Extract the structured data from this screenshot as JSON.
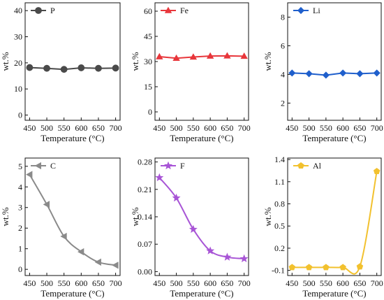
{
  "chart_data": [
    {
      "type": "line",
      "xlabel": "Temperature (°C)",
      "ylabel": "wt.%",
      "x": [
        450,
        500,
        550,
        600,
        650,
        700
      ],
      "xticks": [
        "450",
        "500",
        "550",
        "600",
        "650",
        "700"
      ],
      "xlim": [
        437,
        713
      ],
      "ylim": [
        -2,
        43
      ],
      "yticks": [
        0,
        10,
        20,
        30,
        40
      ],
      "ytick_labels": [
        "0",
        "10",
        "20",
        "30",
        "40"
      ],
      "series": [
        {
          "name": "P",
          "color": "#4a4a4a",
          "marker": "circle",
          "curve": "linear",
          "values": [
            18.2,
            17.9,
            17.5,
            18.1,
            17.9,
            18.0
          ]
        }
      ]
    },
    {
      "type": "line",
      "xlabel": "Temperature (°C)",
      "ylabel": "wt.%",
      "x": [
        450,
        500,
        550,
        600,
        650,
        700
      ],
      "xticks": [
        "450",
        "500",
        "550",
        "600",
        "650",
        "700"
      ],
      "xlim": [
        437,
        713
      ],
      "ylim": [
        -5,
        65
      ],
      "yticks": [
        0,
        15,
        30,
        45,
        60
      ],
      "ytick_labels": [
        "0",
        "15",
        "30",
        "45",
        "60"
      ],
      "series": [
        {
          "name": "Fe",
          "color": "#e8363b",
          "marker": "triangle-up",
          "curve": "linear",
          "values": [
            32.9,
            32.0,
            32.7,
            33.3,
            33.4,
            33.2
          ]
        }
      ]
    },
    {
      "type": "line",
      "xlabel": "Temperature (°C)",
      "ylabel": "wt.%",
      "x": [
        450,
        500,
        550,
        600,
        650,
        700
      ],
      "xticks": [
        "450",
        "500",
        "550",
        "600",
        "650",
        "700"
      ],
      "xlim": [
        437,
        713
      ],
      "ylim": [
        0.8,
        9
      ],
      "yticks": [
        2,
        4,
        6,
        8
      ],
      "ytick_labels": [
        "2",
        "4",
        "6",
        "8"
      ],
      "series": [
        {
          "name": "Li",
          "color": "#1f5fcc",
          "marker": "diamond",
          "curve": "linear",
          "values": [
            4.1,
            4.05,
            3.95,
            4.1,
            4.05,
            4.1
          ]
        }
      ]
    },
    {
      "type": "line",
      "xlabel": "Temperature (°C)",
      "ylabel": "wt.%",
      "x": [
        450,
        500,
        550,
        600,
        650,
        700
      ],
      "xticks": [
        "450",
        "500",
        "550",
        "600",
        "650",
        "700"
      ],
      "xlim": [
        437,
        713
      ],
      "ylim": [
        -0.3,
        5.4
      ],
      "yticks": [
        0,
        1,
        2,
        3,
        4,
        5
      ],
      "ytick_labels": [
        "0",
        "1",
        "2",
        "3",
        "4",
        "5"
      ],
      "series": [
        {
          "name": "C",
          "color": "#8a8a8a",
          "marker": "triangle-left",
          "curve": "smooth",
          "values": [
            4.6,
            3.15,
            1.6,
            0.85,
            0.35,
            0.2
          ]
        }
      ]
    },
    {
      "type": "line",
      "xlabel": "Temperature (°C)",
      "ylabel": "wt.%",
      "x": [
        450,
        500,
        550,
        600,
        650,
        700
      ],
      "xticks": [
        "450",
        "500",
        "550",
        "600",
        "650",
        "700"
      ],
      "xlim": [
        437,
        713
      ],
      "ylim": [
        -0.01,
        0.29
      ],
      "yticks": [
        0,
        0.07,
        0.14,
        0.21,
        0.28
      ],
      "ytick_labels": [
        "0.00",
        "0.07",
        "0.14",
        "0.21",
        "0.28"
      ],
      "series": [
        {
          "name": "F",
          "color": "#a855d6",
          "marker": "star",
          "curve": "smooth",
          "values": [
            0.24,
            0.188,
            0.108,
            0.053,
            0.037,
            0.033
          ]
        }
      ]
    },
    {
      "type": "line",
      "xlabel": "Temperature (°C)",
      "ylabel": "wt.%",
      "x": [
        450,
        500,
        550,
        600,
        650,
        700
      ],
      "xticks": [
        "450",
        "500",
        "550",
        "600",
        "650",
        "700"
      ],
      "xlim": [
        437,
        713
      ],
      "ylim": [
        -0.17,
        1.42
      ],
      "yticks": [
        -0.1,
        0.2,
        0.5,
        0.8,
        1.1,
        1.4
      ],
      "ytick_labels": [
        "-0.1",
        "0.2",
        "0.5",
        "0.8",
        "1.1",
        "1.4"
      ],
      "series": [
        {
          "name": "Al",
          "color": "#f2c12e",
          "marker": "pentagon",
          "curve": "smooth",
          "values": [
            -0.06,
            -0.06,
            -0.06,
            -0.06,
            -0.05,
            1.24
          ]
        }
      ]
    }
  ]
}
